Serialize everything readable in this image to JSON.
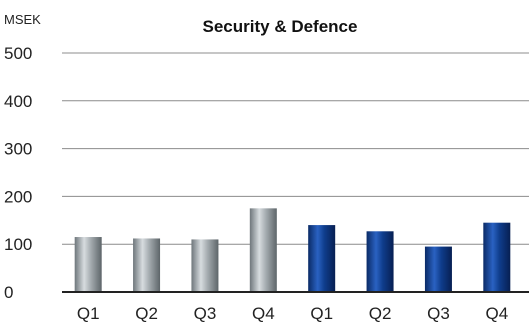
{
  "chart_data": {
    "type": "bar",
    "title": "Security & Defence",
    "unit_label": "MSEK",
    "ylim": [
      0,
      500
    ],
    "yticks": [
      0,
      100,
      200,
      300,
      400,
      500
    ],
    "grid": true,
    "categories": [
      "Q1",
      "Q2",
      "Q3",
      "Q4",
      "Q1",
      "Q2",
      "Q3",
      "Q4"
    ],
    "values": [
      115,
      112,
      110,
      175,
      140,
      127,
      95,
      145
    ],
    "series_colors": [
      "#9aa1a5",
      "#9aa1a5",
      "#9aa1a5",
      "#9aa1a5",
      "#0d3a86",
      "#0d3a86",
      "#0d3a86",
      "#0d3a86"
    ]
  }
}
